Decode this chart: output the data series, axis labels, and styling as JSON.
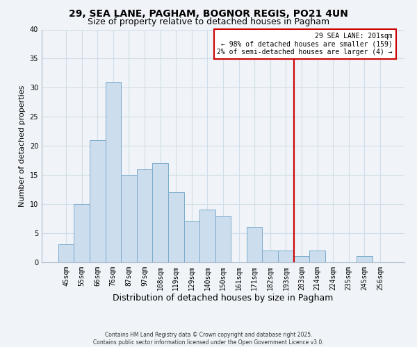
{
  "title": "29, SEA LANE, PAGHAM, BOGNOR REGIS, PO21 4UN",
  "subtitle": "Size of property relative to detached houses in Pagham",
  "xlabel": "Distribution of detached houses by size in Pagham",
  "ylabel": "Number of detached properties",
  "bar_color": "#ccdded",
  "bar_edge_color": "#7aabcc",
  "grid_color": "#d0dde8",
  "background_color": "#f0f4f8",
  "bin_labels": [
    "45sqm",
    "55sqm",
    "66sqm",
    "76sqm",
    "87sqm",
    "97sqm",
    "108sqm",
    "119sqm",
    "129sqm",
    "140sqm",
    "150sqm",
    "161sqm",
    "171sqm",
    "182sqm",
    "193sqm",
    "203sqm",
    "214sqm",
    "224sqm",
    "235sqm",
    "245sqm",
    "256sqm"
  ],
  "bar_values": [
    3,
    10,
    21,
    31,
    15,
    16,
    17,
    12,
    7,
    9,
    8,
    0,
    6,
    2,
    2,
    1,
    2,
    0,
    0,
    1,
    0
  ],
  "ylim": [
    0,
    40
  ],
  "yticks": [
    0,
    5,
    10,
    15,
    20,
    25,
    30,
    35,
    40
  ],
  "vline_bin_index": 15,
  "vline_color": "#cc0000",
  "annotation_line1": "29 SEA LANE: 201sqm",
  "annotation_line2": "← 98% of detached houses are smaller (159)",
  "annotation_line3": "2% of semi-detached houses are larger (4) →",
  "annotation_box_color": "white",
  "annotation_box_edge_color": "#cc0000",
  "footer_line1": "Contains HM Land Registry data © Crown copyright and database right 2025.",
  "footer_line2": "Contains public sector information licensed under the Open Government Licence v3.0.",
  "title_fontsize": 10,
  "subtitle_fontsize": 9,
  "xlabel_fontsize": 9,
  "ylabel_fontsize": 8,
  "tick_fontsize": 7,
  "annotation_fontsize": 7,
  "footer_fontsize": 5.5
}
